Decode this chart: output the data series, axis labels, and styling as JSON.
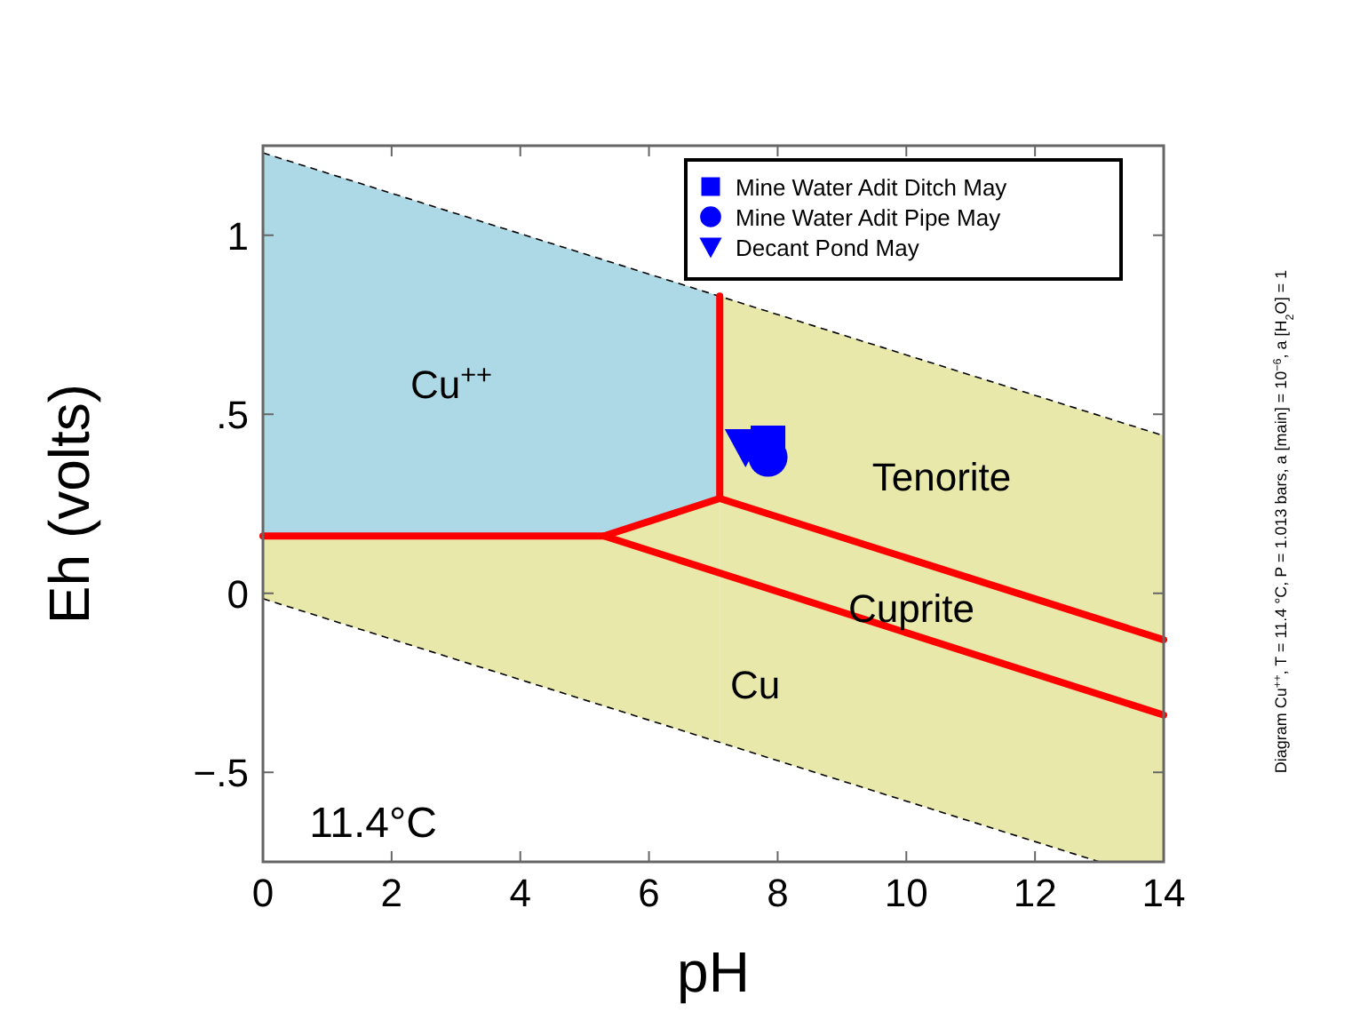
{
  "chart_data": {
    "type": "line",
    "xlabel": "pH",
    "ylabel": "Eh (volts)",
    "xlim": [
      0,
      14
    ],
    "ylim": [
      -0.75,
      1.25
    ],
    "xticks": [
      0,
      2,
      4,
      6,
      8,
      10,
      12,
      14
    ],
    "yticks": [
      {
        "value": -0.5,
        "label": "−.5"
      },
      0,
      {
        "value": 0.5,
        "label": ".5"
      },
      1
    ],
    "grid": false,
    "legend": "top right",
    "series": [
      {
        "color": "#000000",
        "line_style": "dashed",
        "x": [
          0,
          14
        ],
        "values": [
          1.23,
          0.44
        ]
      },
      {
        "color": "#000000",
        "line_style": "dashed",
        "x": [
          0,
          13
        ],
        "values": [
          -0.015,
          -0.75
        ]
      },
      {
        "color": "#ff0000",
        "x": [
          0,
          5.3,
          7.1,
          7.1
        ],
        "values": [
          0.16,
          0.16,
          0.265,
          0.83
        ]
      },
      {
        "color": "#ff0000",
        "x": [
          7.1,
          14
        ],
        "values": [
          0.265,
          -0.13
        ]
      },
      {
        "color": "#ff0000",
        "x": [
          5.3,
          14
        ],
        "values": [
          0.16,
          -0.34
        ]
      },
      {
        "type": "scatter",
        "name": "Mine Water Adit Ditch May",
        "color": "#0000ff",
        "marker": "square",
        "x": [
          7.85
        ],
        "values": [
          0.42
        ]
      },
      {
        "type": "scatter",
        "name": "Mine Water Adit Pipe May",
        "color": "#0000ff",
        "marker": "circle",
        "x": [
          7.85
        ],
        "values": [
          0.38
        ]
      },
      {
        "type": "scatter",
        "name": "Decant Pond May",
        "color": "#0000ff",
        "marker": "triangle-down",
        "x": [
          7.5
        ],
        "values": [
          0.41
        ]
      }
    ],
    "annotations": [
      "Cu$^{++}$",
      "Tenorite",
      "Cuprite",
      "Cu",
      "11.4°C",
      "Diagram Cu$^{++}$, T = 11.4 °C, P = 1.013 bars, a [main] = 10$^{−6}$, a [H$_{2}$O] = 1"
    ]
  }
}
